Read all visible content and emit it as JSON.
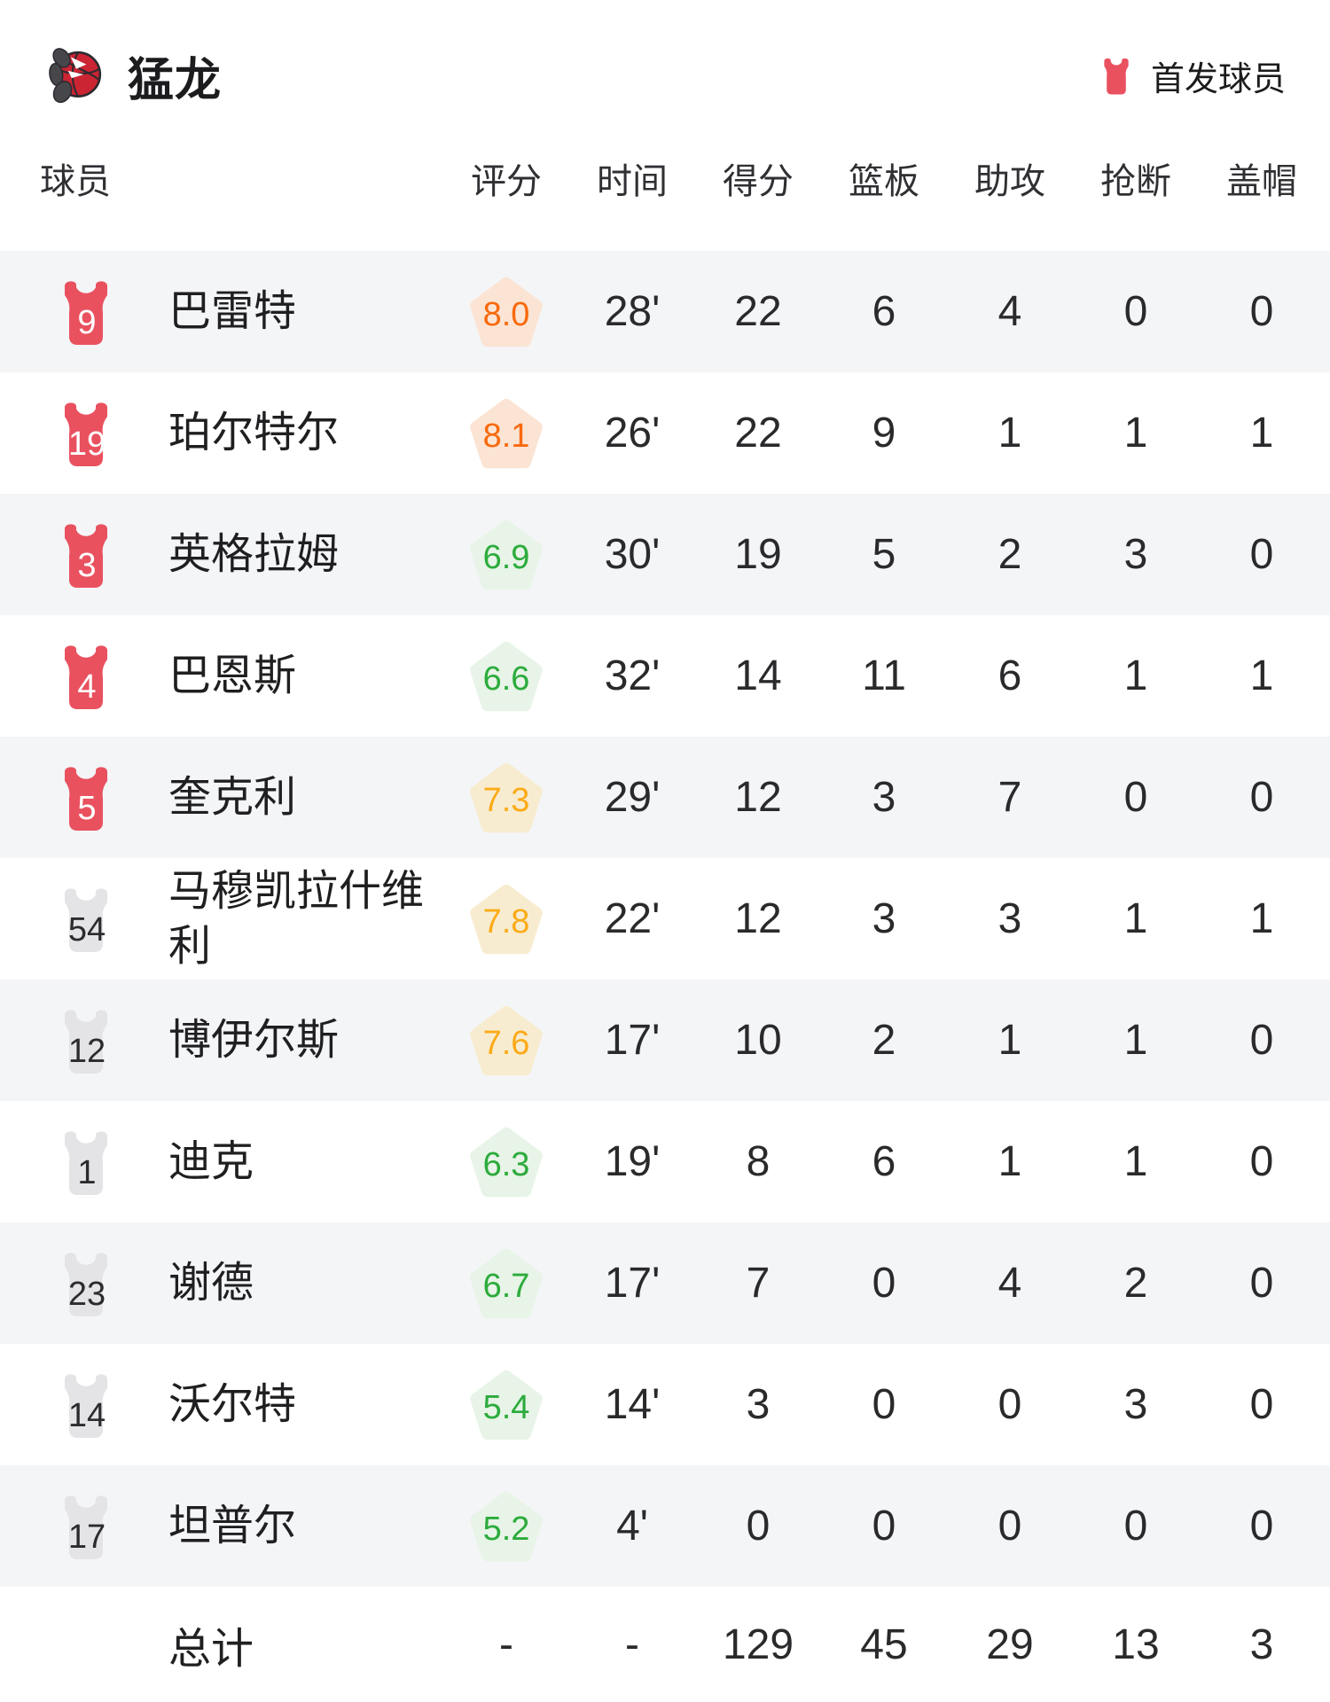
{
  "team": {
    "name": "猛龙"
  },
  "legend": {
    "label": "首发球员"
  },
  "columns": [
    "球员",
    "评分",
    "时间",
    "得分",
    "篮板",
    "助攻",
    "抢断",
    "盖帽"
  ],
  "players": [
    {
      "number": "9",
      "starter": true,
      "name": "巴雷特",
      "rating": "8.0",
      "time": "28'",
      "pts": "22",
      "reb": "6",
      "ast": "4",
      "stl": "0",
      "blk": "0"
    },
    {
      "number": "19",
      "starter": true,
      "name": "珀尔特尔",
      "rating": "8.1",
      "time": "26'",
      "pts": "22",
      "reb": "9",
      "ast": "1",
      "stl": "1",
      "blk": "1"
    },
    {
      "number": "3",
      "starter": true,
      "name": "英格拉姆",
      "rating": "6.9",
      "time": "30'",
      "pts": "19",
      "reb": "5",
      "ast": "2",
      "stl": "3",
      "blk": "0"
    },
    {
      "number": "4",
      "starter": true,
      "name": "巴恩斯",
      "rating": "6.6",
      "time": "32'",
      "pts": "14",
      "reb": "11",
      "ast": "6",
      "stl": "1",
      "blk": "1"
    },
    {
      "number": "5",
      "starter": true,
      "name": "奎克利",
      "rating": "7.3",
      "time": "29'",
      "pts": "12",
      "reb": "3",
      "ast": "7",
      "stl": "0",
      "blk": "0"
    },
    {
      "number": "54",
      "starter": false,
      "name": "马穆凯拉什维利",
      "rating": "7.8",
      "time": "22'",
      "pts": "12",
      "reb": "3",
      "ast": "3",
      "stl": "1",
      "blk": "1"
    },
    {
      "number": "12",
      "starter": false,
      "name": "博伊尔斯",
      "rating": "7.6",
      "time": "17'",
      "pts": "10",
      "reb": "2",
      "ast": "1",
      "stl": "1",
      "blk": "0"
    },
    {
      "number": "1",
      "starter": false,
      "name": "迪克",
      "rating": "6.3",
      "time": "19'",
      "pts": "8",
      "reb": "6",
      "ast": "1",
      "stl": "1",
      "blk": "0"
    },
    {
      "number": "23",
      "starter": false,
      "name": "谢德",
      "rating": "6.7",
      "time": "17'",
      "pts": "7",
      "reb": "0",
      "ast": "4",
      "stl": "2",
      "blk": "0"
    },
    {
      "number": "14",
      "starter": false,
      "name": "沃尔特",
      "rating": "5.4",
      "time": "14'",
      "pts": "3",
      "reb": "0",
      "ast": "0",
      "stl": "3",
      "blk": "0"
    },
    {
      "number": "17",
      "starter": false,
      "name": "坦普尔",
      "rating": "5.2",
      "time": "4'",
      "pts": "0",
      "reb": "0",
      "ast": "0",
      "stl": "0",
      "blk": "0"
    }
  ],
  "total": {
    "label": "总计",
    "rating": "-",
    "time": "-",
    "pts": "129",
    "reb": "45",
    "ast": "29",
    "stl": "13",
    "blk": "3"
  },
  "colors": {
    "starter_jersey_red": "#e9515f",
    "bench_jersey_gray": "#e4e4e6",
    "rating_orange": "#f8690d",
    "rating_amber": "#fbab18",
    "rating_green": "#2cab3c",
    "row_stripe_gray": "#f4f5f7"
  }
}
